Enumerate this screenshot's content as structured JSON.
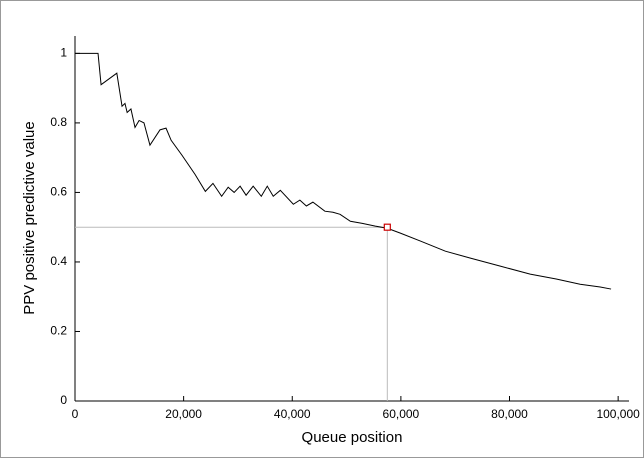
{
  "chart_data": {
    "type": "line",
    "xlabel": "Queue position",
    "ylabel": "PPV positive predictive value",
    "x": [
      0,
      4240,
      4800,
      7700,
      8660,
      9200,
      9600,
      10300,
      11050,
      11800,
      12700,
      13800,
      15650,
      16760,
      17700,
      19700,
      22100,
      24000,
      25400,
      27000,
      28200,
      29300,
      30400,
      31500,
      32800,
      34300,
      35400,
      36500,
      37800,
      40200,
      41400,
      42600,
      43800,
      46000,
      47500,
      48800,
      50700,
      52900,
      55300,
      57500,
      59900,
      63600,
      68200,
      72800,
      78300,
      83800,
      88600,
      93000,
      96700,
      98700
    ],
    "series": [
      {
        "color": "#000000",
        "values": [
          1.0,
          1.0,
          0.91,
          0.943,
          0.848,
          0.856,
          0.83,
          0.84,
          0.787,
          0.807,
          0.8,
          0.736,
          0.78,
          0.785,
          0.75,
          0.707,
          0.652,
          0.603,
          0.626,
          0.589,
          0.615,
          0.6,
          0.618,
          0.592,
          0.618,
          0.589,
          0.618,
          0.589,
          0.606,
          0.566,
          0.578,
          0.561,
          0.572,
          0.546,
          0.543,
          0.537,
          0.517,
          0.511,
          0.503,
          0.497,
          0.483,
          0.46,
          0.431,
          0.411,
          0.388,
          0.365,
          0.351,
          0.336,
          0.328,
          0.322
        ]
      }
    ],
    "highlight": {
      "x": 57500,
      "y": 0.5,
      "color": "#cc0000"
    },
    "xlim": [
      0,
      102000
    ],
    "ylim": [
      0,
      1.05
    ],
    "xticks": [
      0,
      {
        "value": 20000,
        "label": "20,000"
      },
      {
        "value": 40000,
        "label": "40,000"
      },
      {
        "value": 60000,
        "label": "60,000"
      },
      {
        "value": 80000,
        "label": "80,000"
      },
      {
        "value": 100000,
        "label": "100,000"
      }
    ],
    "yticks": [
      0,
      0.2,
      0.4,
      0.6,
      0.8,
      1
    ]
  }
}
